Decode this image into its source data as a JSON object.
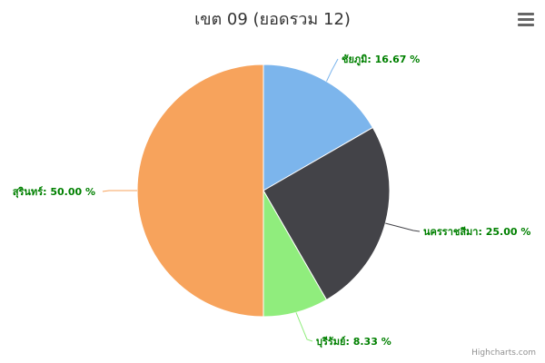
{
  "chart_data": {
    "type": "pie",
    "title": "เขต 09 (ยอดรวม 12)",
    "slices": [
      {
        "name": "ชัยภูมิ",
        "value": 16.67,
        "label": "ชัยภูมิ: 16.67 %",
        "color": "#7cb5ec"
      },
      {
        "name": "นครราชสีมา",
        "value": 25.0,
        "label": "นครราชสีมา: 25.00 %",
        "color": "#434348"
      },
      {
        "name": "บุรีรัมย์",
        "value": 8.33,
        "label": "บุรีรัมย์: 8.33 %",
        "color": "#90ed7d"
      },
      {
        "name": "สุรินทร์",
        "value": 50.0,
        "label": "สุรินทร์: 50.00 %",
        "color": "#f7a35c"
      }
    ],
    "label_color": "#008000"
  },
  "menu": {
    "icon": "hamburger-menu-icon"
  },
  "credits": "Highcharts.com"
}
